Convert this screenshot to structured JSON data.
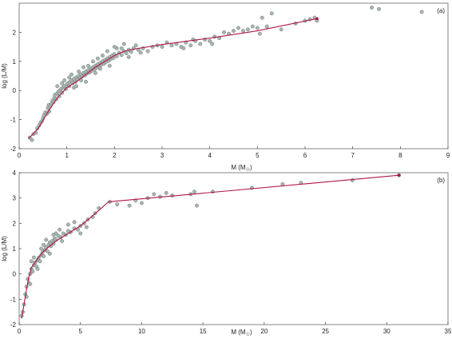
{
  "chart_data": [
    {
      "type": "scatter",
      "panel_label": "(a)",
      "xlabel": "M (M",
      "xlabel_sub": "☉",
      "xlabel_close": ")",
      "ylabel": "log (L/M)",
      "xlim": [
        0,
        9
      ],
      "ylim": [
        -2,
        3
      ],
      "x_ticks": [
        0,
        1,
        2,
        3,
        4,
        5,
        6,
        7,
        8,
        9
      ],
      "y_ticks": [
        -2,
        -1,
        0,
        1,
        2
      ],
      "grid": false,
      "colors": {
        "points": "#a8b5b0",
        "fit": "#b0164a"
      },
      "points": [
        [
          0.22,
          -1.62
        ],
        [
          0.27,
          -1.7
        ],
        [
          0.3,
          -1.5
        ],
        [
          0.35,
          -1.45
        ],
        [
          0.38,
          -1.3
        ],
        [
          0.42,
          -1.2
        ],
        [
          0.45,
          -1.1
        ],
        [
          0.48,
          -1.05
        ],
        [
          0.5,
          -0.95
        ],
        [
          0.52,
          -0.85
        ],
        [
          0.55,
          -0.75
        ],
        [
          0.58,
          -0.8
        ],
        [
          0.6,
          -0.6
        ],
        [
          0.62,
          -0.5
        ],
        [
          0.63,
          -0.72
        ],
        [
          0.65,
          -0.55
        ],
        [
          0.68,
          -0.45
        ],
        [
          0.7,
          -0.35
        ],
        [
          0.72,
          -0.4
        ],
        [
          0.74,
          -0.25
        ],
        [
          0.75,
          -0.15
        ],
        [
          0.78,
          -0.3
        ],
        [
          0.8,
          -0.1
        ],
        [
          0.82,
          -0.05
        ],
        [
          0.84,
          -0.2
        ],
        [
          0.85,
          0.0
        ],
        [
          0.88,
          0.05
        ],
        [
          0.9,
          -0.08
        ],
        [
          0.92,
          0.1
        ],
        [
          0.95,
          0.15
        ],
        [
          0.98,
          0.05
        ],
        [
          1.0,
          0.2
        ],
        [
          1.02,
          0.25
        ],
        [
          1.05,
          0.15
        ],
        [
          1.07,
          0.3
        ],
        [
          1.1,
          0.35
        ],
        [
          1.12,
          0.25
        ],
        [
          1.15,
          0.4
        ],
        [
          1.18,
          0.3
        ],
        [
          1.2,
          0.45
        ],
        [
          1.22,
          0.38
        ],
        [
          1.25,
          0.5
        ],
        [
          1.28,
          0.42
        ],
        [
          1.3,
          0.55
        ],
        [
          1.32,
          0.48
        ],
        [
          1.35,
          0.6
        ],
        [
          1.38,
          0.52
        ],
        [
          1.4,
          0.65
        ],
        [
          1.42,
          0.58
        ],
        [
          1.45,
          0.7
        ],
        [
          1.48,
          0.62
        ],
        [
          1.5,
          0.75
        ],
        [
          1.52,
          0.68
        ],
        [
          1.55,
          0.8
        ],
        [
          1.58,
          0.72
        ],
        [
          1.6,
          0.85
        ],
        [
          1.62,
          0.78
        ],
        [
          1.65,
          0.9
        ],
        [
          1.68,
          0.82
        ],
        [
          1.7,
          0.95
        ],
        [
          1.72,
          0.88
        ],
        [
          1.75,
          1.0
        ],
        [
          1.78,
          0.92
        ],
        [
          1.8,
          1.05
        ],
        [
          1.82,
          0.98
        ],
        [
          1.85,
          1.1
        ],
        [
          1.88,
          1.02
        ],
        [
          1.9,
          1.15
        ],
        [
          1.92,
          1.08
        ],
        [
          1.95,
          1.2
        ],
        [
          1.98,
          1.12
        ],
        [
          2.0,
          1.25
        ],
        [
          2.05,
          1.18
        ],
        [
          2.1,
          1.3
        ],
        [
          2.15,
          1.22
        ],
        [
          2.2,
          1.35
        ],
        [
          2.25,
          1.28
        ],
        [
          2.3,
          1.4
        ],
        [
          2.35,
          1.33
        ],
        [
          2.4,
          1.45
        ],
        [
          1.05,
          0.45
        ],
        [
          1.15,
          0.1
        ],
        [
          1.3,
          0.35
        ],
        [
          1.45,
          0.85
        ],
        [
          1.6,
          0.6
        ],
        [
          1.75,
          1.2
        ],
        [
          1.9,
          0.85
        ],
        [
          2.05,
          1.45
        ],
        [
          0.95,
          0.35
        ],
        [
          1.25,
          0.65
        ],
        [
          1.55,
          1.0
        ],
        [
          1.85,
          1.35
        ],
        [
          2.2,
          1.6
        ],
        [
          2.3,
          1.15
        ],
        [
          1.4,
          0.3
        ],
        [
          1.65,
          1.1
        ],
        [
          0.9,
          0.25
        ],
        [
          1.1,
          0.55
        ],
        [
          1.35,
          0.8
        ],
        [
          1.7,
          0.75
        ],
        [
          2.0,
          1.5
        ],
        [
          2.15,
          1.45
        ],
        [
          0.8,
          0.15
        ],
        [
          1.2,
          0.15
        ],
        [
          2.5,
          1.4
        ],
        [
          2.6,
          1.45
        ],
        [
          2.7,
          1.35
        ],
        [
          2.8,
          1.5
        ],
        [
          2.9,
          1.55
        ],
        [
          3.0,
          1.5
        ],
        [
          3.2,
          1.55
        ],
        [
          3.3,
          1.6
        ],
        [
          3.4,
          1.5
        ],
        [
          3.5,
          1.65
        ],
        [
          3.6,
          1.55
        ],
        [
          3.7,
          1.7
        ],
        [
          3.8,
          1.6
        ],
        [
          3.9,
          1.75
        ],
        [
          4.0,
          1.7
        ],
        [
          4.1,
          1.85
        ],
        [
          4.2,
          1.8
        ],
        [
          4.3,
          2.0
        ],
        [
          4.5,
          2.05
        ],
        [
          4.6,
          2.15
        ],
        [
          4.7,
          2.05
        ],
        [
          4.8,
          2.1
        ],
        [
          4.9,
          2.2
        ],
        [
          5.0,
          2.15
        ],
        [
          5.1,
          2.5
        ],
        [
          5.2,
          2.2
        ],
        [
          5.3,
          2.65
        ],
        [
          5.5,
          2.1
        ],
        [
          5.8,
          2.3
        ],
        [
          6.0,
          2.4
        ],
        [
          6.1,
          2.45
        ],
        [
          6.2,
          2.5
        ],
        [
          6.25,
          2.4
        ],
        [
          7.4,
          2.85
        ],
        [
          7.55,
          2.8
        ],
        [
          8.45,
          2.7
        ],
        [
          2.45,
          1.55
        ],
        [
          2.55,
          1.3
        ],
        [
          3.1,
          1.65
        ],
        [
          3.45,
          1.45
        ],
        [
          3.65,
          1.75
        ],
        [
          4.4,
          1.95
        ],
        [
          4.05,
          1.6
        ],
        [
          5.05,
          1.95
        ]
      ],
      "fit_line": [
        [
          0.2,
          -1.65
        ],
        [
          0.4,
          -1.3
        ],
        [
          0.6,
          -0.75
        ],
        [
          0.8,
          -0.25
        ],
        [
          1.0,
          0.1
        ],
        [
          1.2,
          0.3
        ],
        [
          1.4,
          0.55
        ],
        [
          1.6,
          0.8
        ],
        [
          1.8,
          1.0
        ],
        [
          2.0,
          1.2
        ],
        [
          2.2,
          1.35
        ],
        [
          2.4,
          1.42
        ],
        [
          3.0,
          1.58
        ],
        [
          4.0,
          1.8
        ],
        [
          5.0,
          2.05
        ],
        [
          6.25,
          2.47
        ]
      ]
    },
    {
      "type": "scatter",
      "panel_label": "(b)",
      "xlabel": "M (M",
      "xlabel_sub": "☉",
      "xlabel_close": ")",
      "ylabel": "log (L/M)",
      "xlim": [
        0,
        35
      ],
      "ylim": [
        -2,
        4
      ],
      "x_ticks": [
        0,
        5,
        10,
        15,
        20,
        25,
        30,
        35
      ],
      "y_ticks": [
        -2,
        -1,
        0,
        1,
        2,
        3,
        4
      ],
      "grid": false,
      "colors": {
        "points": "#a8b5b0",
        "fit": "#b0164a"
      },
      "points": [
        [
          0.2,
          -1.65
        ],
        [
          0.3,
          -1.5
        ],
        [
          0.4,
          -1.2
        ],
        [
          0.5,
          -0.8
        ],
        [
          0.6,
          -0.5
        ],
        [
          0.7,
          -0.2
        ],
        [
          0.8,
          -0.35
        ],
        [
          0.9,
          0.0
        ],
        [
          1.0,
          0.2
        ],
        [
          1.1,
          0.1
        ],
        [
          1.2,
          0.35
        ],
        [
          1.3,
          0.45
        ],
        [
          1.4,
          0.3
        ],
        [
          1.5,
          0.55
        ],
        [
          1.6,
          0.65
        ],
        [
          1.7,
          0.5
        ],
        [
          1.8,
          0.75
        ],
        [
          1.9,
          0.85
        ],
        [
          2.0,
          0.7
        ],
        [
          2.1,
          0.95
        ],
        [
          2.2,
          1.05
        ],
        [
          2.3,
          0.9
        ],
        [
          2.4,
          1.15
        ],
        [
          2.5,
          1.25
        ],
        [
          2.6,
          1.1
        ],
        [
          2.7,
          1.3
        ],
        [
          2.8,
          1.2
        ],
        [
          2.9,
          1.4
        ],
        [
          3.0,
          1.35
        ],
        [
          3.2,
          1.5
        ],
        [
          3.4,
          1.45
        ],
        [
          3.6,
          1.6
        ],
        [
          3.8,
          1.55
        ],
        [
          4.0,
          1.7
        ],
        [
          4.2,
          1.65
        ],
        [
          4.5,
          1.8
        ],
        [
          4.8,
          1.75
        ],
        [
          5.0,
          1.9
        ],
        [
          5.3,
          2.0
        ],
        [
          5.6,
          2.15
        ],
        [
          6.0,
          2.25
        ],
        [
          6.2,
          2.4
        ],
        [
          6.5,
          2.6
        ],
        [
          7.4,
          2.85
        ],
        [
          8.0,
          2.75
        ],
        [
          9.0,
          2.7
        ],
        [
          9.5,
          2.9
        ],
        [
          10.0,
          2.8
        ],
        [
          10.5,
          3.0
        ],
        [
          11.0,
          3.15
        ],
        [
          11.5,
          3.05
        ],
        [
          12.0,
          3.2
        ],
        [
          12.5,
          3.1
        ],
        [
          14.0,
          3.15
        ],
        [
          14.3,
          3.25
        ],
        [
          14.5,
          2.7
        ],
        [
          15.8,
          3.25
        ],
        [
          19.0,
          3.4
        ],
        [
          21.5,
          3.55
        ],
        [
          23.0,
          3.6
        ],
        [
          27.2,
          3.7
        ],
        [
          31.0,
          3.9
        ],
        [
          1.0,
          0.5
        ],
        [
          1.5,
          0.2
        ],
        [
          2.0,
          1.15
        ],
        [
          2.5,
          0.8
        ],
        [
          3.0,
          1.6
        ],
        [
          3.5,
          1.3
        ],
        [
          4.0,
          1.95
        ],
        [
          4.5,
          2.05
        ],
        [
          5.0,
          1.6
        ],
        [
          1.2,
          0.65
        ],
        [
          1.8,
          1.0
        ],
        [
          2.2,
          1.35
        ],
        [
          2.8,
          1.55
        ],
        [
          3.3,
          1.75
        ],
        [
          0.6,
          -0.9
        ],
        [
          0.9,
          -0.4
        ],
        [
          5.5,
          1.85
        ]
      ],
      "fit_line": [
        [
          0.2,
          -1.75
        ],
        [
          0.4,
          -1.2
        ],
        [
          0.6,
          -0.6
        ],
        [
          0.8,
          -0.1
        ],
        [
          1.0,
          0.25
        ],
        [
          1.5,
          0.6
        ],
        [
          2.0,
          0.9
        ],
        [
          3.0,
          1.3
        ],
        [
          4.0,
          1.6
        ],
        [
          5.0,
          1.9
        ],
        [
          6.0,
          2.3
        ],
        [
          7.3,
          2.85
        ],
        [
          31.0,
          3.9
        ]
      ]
    }
  ]
}
